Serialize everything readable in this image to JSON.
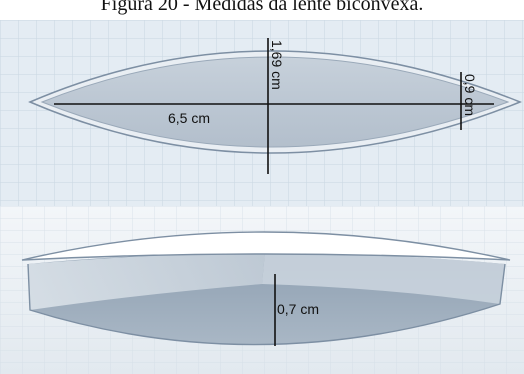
{
  "figure": {
    "caption": "Figura 20 - Medidas da lente biconvexa."
  },
  "top_view": {
    "length_label": "6,5 cm",
    "height_label": "1,69 cm",
    "edge_label": "0,9 cm"
  },
  "side_view": {
    "thickness_label": "0,7 cm"
  },
  "colors": {
    "grid_line": "#c9d6e2",
    "grid_major": "#b5c6d6",
    "lens_fill": "#bcc8d4",
    "lens_outline": "#7d8fa3",
    "lens_rim": "#e9eef3",
    "dimension_line": "#111111"
  }
}
